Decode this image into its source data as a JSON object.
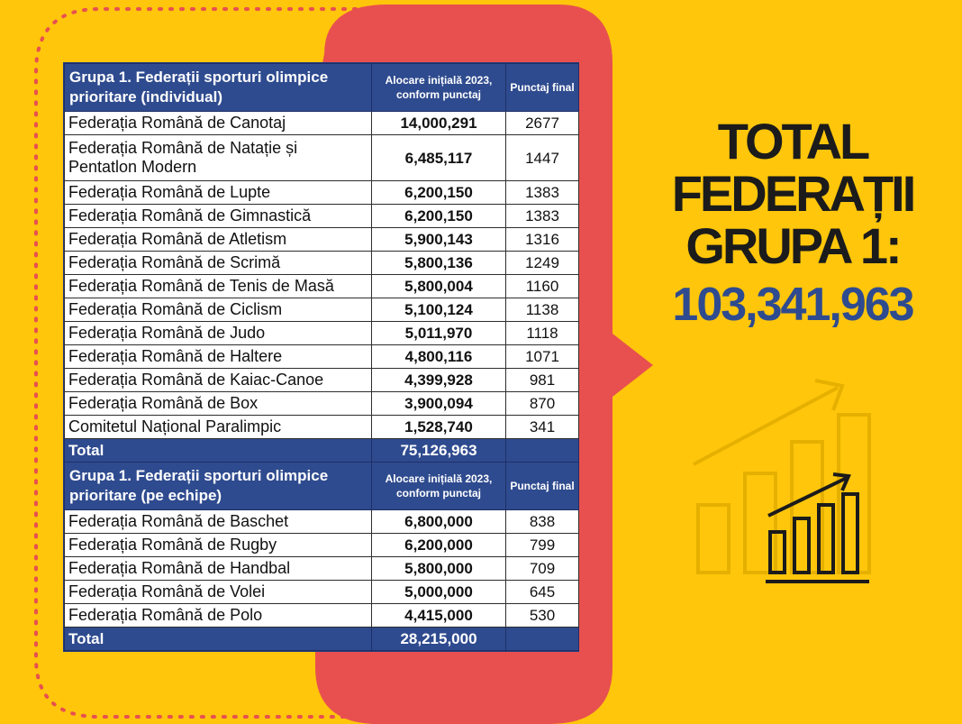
{
  "colors": {
    "background": "#ffc60b",
    "accent": "#e8504f",
    "header_blue": "#2f4b8f",
    "total_blue": "#2f4b8f"
  },
  "group1": {
    "title": "Grupa 1. Federații sporturi olimpice prioritare (individual)",
    "col_alloc": "Alocare inițială 2023, conform punctaj",
    "col_points": "Punctaj final",
    "rows": [
      {
        "name": "Federația Română de Canotaj",
        "alloc": "14,000,291",
        "points": "2677"
      },
      {
        "name": "Federația Română de Natație și Pentatlon Modern",
        "alloc": "6,485,117",
        "points": "1447"
      },
      {
        "name": "Federația Română de Lupte",
        "alloc": "6,200,150",
        "points": "1383"
      },
      {
        "name": "Federația Română de Gimnastică",
        "alloc": "6,200,150",
        "points": "1383"
      },
      {
        "name": "Federația Română de Atletism",
        "alloc": "5,900,143",
        "points": "1316"
      },
      {
        "name": "Federația Română de Scrimă",
        "alloc": "5,800,136",
        "points": "1249"
      },
      {
        "name": "Federația Română de Tenis de Masă",
        "alloc": "5,800,004",
        "points": "1160"
      },
      {
        "name": "Federația Română de Ciclism",
        "alloc": "5,100,124",
        "points": "1138"
      },
      {
        "name": "Federația Română de Judo",
        "alloc": "5,011,970",
        "points": "1118"
      },
      {
        "name": "Federația Română de Haltere",
        "alloc": "4,800,116",
        "points": "1071"
      },
      {
        "name": "Federația Română de Kaiac-Canoe",
        "alloc": "4,399,928",
        "points": "981"
      },
      {
        "name": "Federația Română de Box",
        "alloc": "3,900,094",
        "points": "870"
      },
      {
        "name": "Comitetul Național Paralimpic",
        "alloc": "1,528,740",
        "points": "341"
      }
    ],
    "total_label": "Total",
    "total_value": "75,126,963"
  },
  "group2": {
    "title": "Grupa 1. Federații sporturi olimpice prioritare (pe echipe)",
    "col_alloc": "Alocare inițială 2023, conform punctaj",
    "col_points": "Punctaj final",
    "rows": [
      {
        "name": "Federația Română de Baschet",
        "alloc": "6,800,000",
        "points": "838"
      },
      {
        "name": "Federația Română de Rugby",
        "alloc": "6,200,000",
        "points": "799"
      },
      {
        "name": "Federația Română de Handbal",
        "alloc": "5,800,000",
        "points": "709"
      },
      {
        "name": "Federația Română de Volei",
        "alloc": "5,000,000",
        "points": "645"
      },
      {
        "name": "Federația Română de Polo",
        "alloc": "4,415,000",
        "points": "530"
      }
    ],
    "total_label": "Total",
    "total_value": "28,215,000"
  },
  "summary": {
    "line1": "TOTAL",
    "line2": "FEDERAȚII",
    "line3": "GRUPA 1:",
    "value": "103,341,963"
  },
  "icons": {
    "decor": "bar-chart-growth-icon"
  }
}
